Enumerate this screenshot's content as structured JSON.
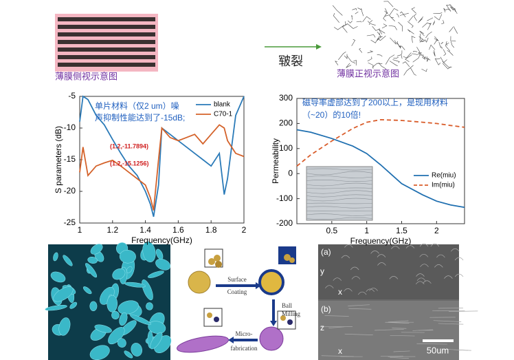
{
  "chart_data": [
    {
      "type": "line",
      "x_label": "Frequency(GHz)",
      "y_label": "S parameters (dB)",
      "x": [
        1.0,
        1.02,
        1.05,
        1.1,
        1.15,
        1.2,
        1.25,
        1.3,
        1.35,
        1.4,
        1.43,
        1.45,
        1.48,
        1.5,
        1.55,
        1.6,
        1.65,
        1.7,
        1.75,
        1.8,
        1.85,
        1.88,
        1.9,
        1.95,
        2.0
      ],
      "series": [
        {
          "name": "blank",
          "color": "#2a7ab8",
          "style": "solid",
          "values": [
            -9,
            -5,
            -5.5,
            -8,
            -9.5,
            -11.8,
            -14,
            -16,
            -17.5,
            -20,
            -22,
            -24,
            -19,
            -10,
            -11,
            -12,
            -13,
            -14,
            -15,
            -16,
            -14,
            -20.5,
            -18,
            -8,
            -5
          ]
        },
        {
          "name": "C70-1",
          "color": "#d4622a",
          "style": "solid",
          "values": [
            -17,
            -13,
            -17.5,
            -16,
            -15.5,
            -15.1,
            -16,
            -17,
            -18,
            -19,
            -21,
            -23,
            -15,
            -10,
            -11.5,
            -12,
            -11.5,
            -11,
            -12.5,
            -11,
            -9.5,
            -10,
            -12,
            -14,
            -14.5
          ]
        }
      ],
      "xlim": [
        1,
        2
      ],
      "xticks": [
        1,
        1.2,
        1.4,
        1.6,
        1.8,
        2
      ],
      "ylim": [
        -25,
        -5
      ],
      "yticks": [
        -25,
        -20,
        -15,
        -10,
        -5
      ],
      "annotations": [
        "单片材料（仅2 um）噪",
        "声抑制性能达到了-15dB;"
      ],
      "annotation_color": "#1f5fbf",
      "point_labels": [
        "(1.2,-11.7894)",
        "(1.2,-15.1256)"
      ],
      "point_label_color": "#d02020"
    },
    {
      "type": "line",
      "x_label": "Frequency(GHz)",
      "y_label": "Permeability",
      "x": [
        0,
        0.2,
        0.5,
        0.8,
        1.0,
        1.2,
        1.5,
        1.8,
        2.0,
        2.2,
        2.4
      ],
      "series": [
        {
          "name": "Re(miu)",
          "color": "#1f6fb0",
          "style": "solid",
          "values": [
            175,
            165,
            140,
            110,
            80,
            35,
            -40,
            -85,
            -110,
            -125,
            -135
          ]
        },
        {
          "name": "Im(miu)",
          "color": "#d95c2a",
          "style": "dashed",
          "values": [
            30,
            75,
            130,
            180,
            205,
            215,
            212,
            205,
            200,
            192,
            185
          ]
        }
      ],
      "xlim": [
        0,
        2.4
      ],
      "xticks": [
        0.5,
        1,
        1.5,
        2
      ],
      "ylim": [
        -200,
        300
      ],
      "yticks": [
        -200,
        -100,
        0,
        100,
        200,
        300
      ],
      "annotations": [
        "磁导率虚部达到了200以上，是现用材料",
        "（~20）的10倍!"
      ],
      "annotation_color": "#1f5fbf"
    }
  ],
  "figures": {
    "side_view": "薄膜侧视示意图",
    "crack": "皲裂",
    "front_view": "薄膜正视示意图",
    "surface_coating": [
      "Surface",
      "Coating"
    ],
    "ball_milling": [
      "Ball",
      "Milling"
    ],
    "micro_fabrication": [
      "Micro-",
      "fabrication"
    ],
    "panel_a": "(a)",
    "panel_b": "(b)",
    "axis_y": "y",
    "axis_x": "x",
    "axis_z": "z",
    "axis_x2": "x",
    "scale_bar": "50um"
  }
}
